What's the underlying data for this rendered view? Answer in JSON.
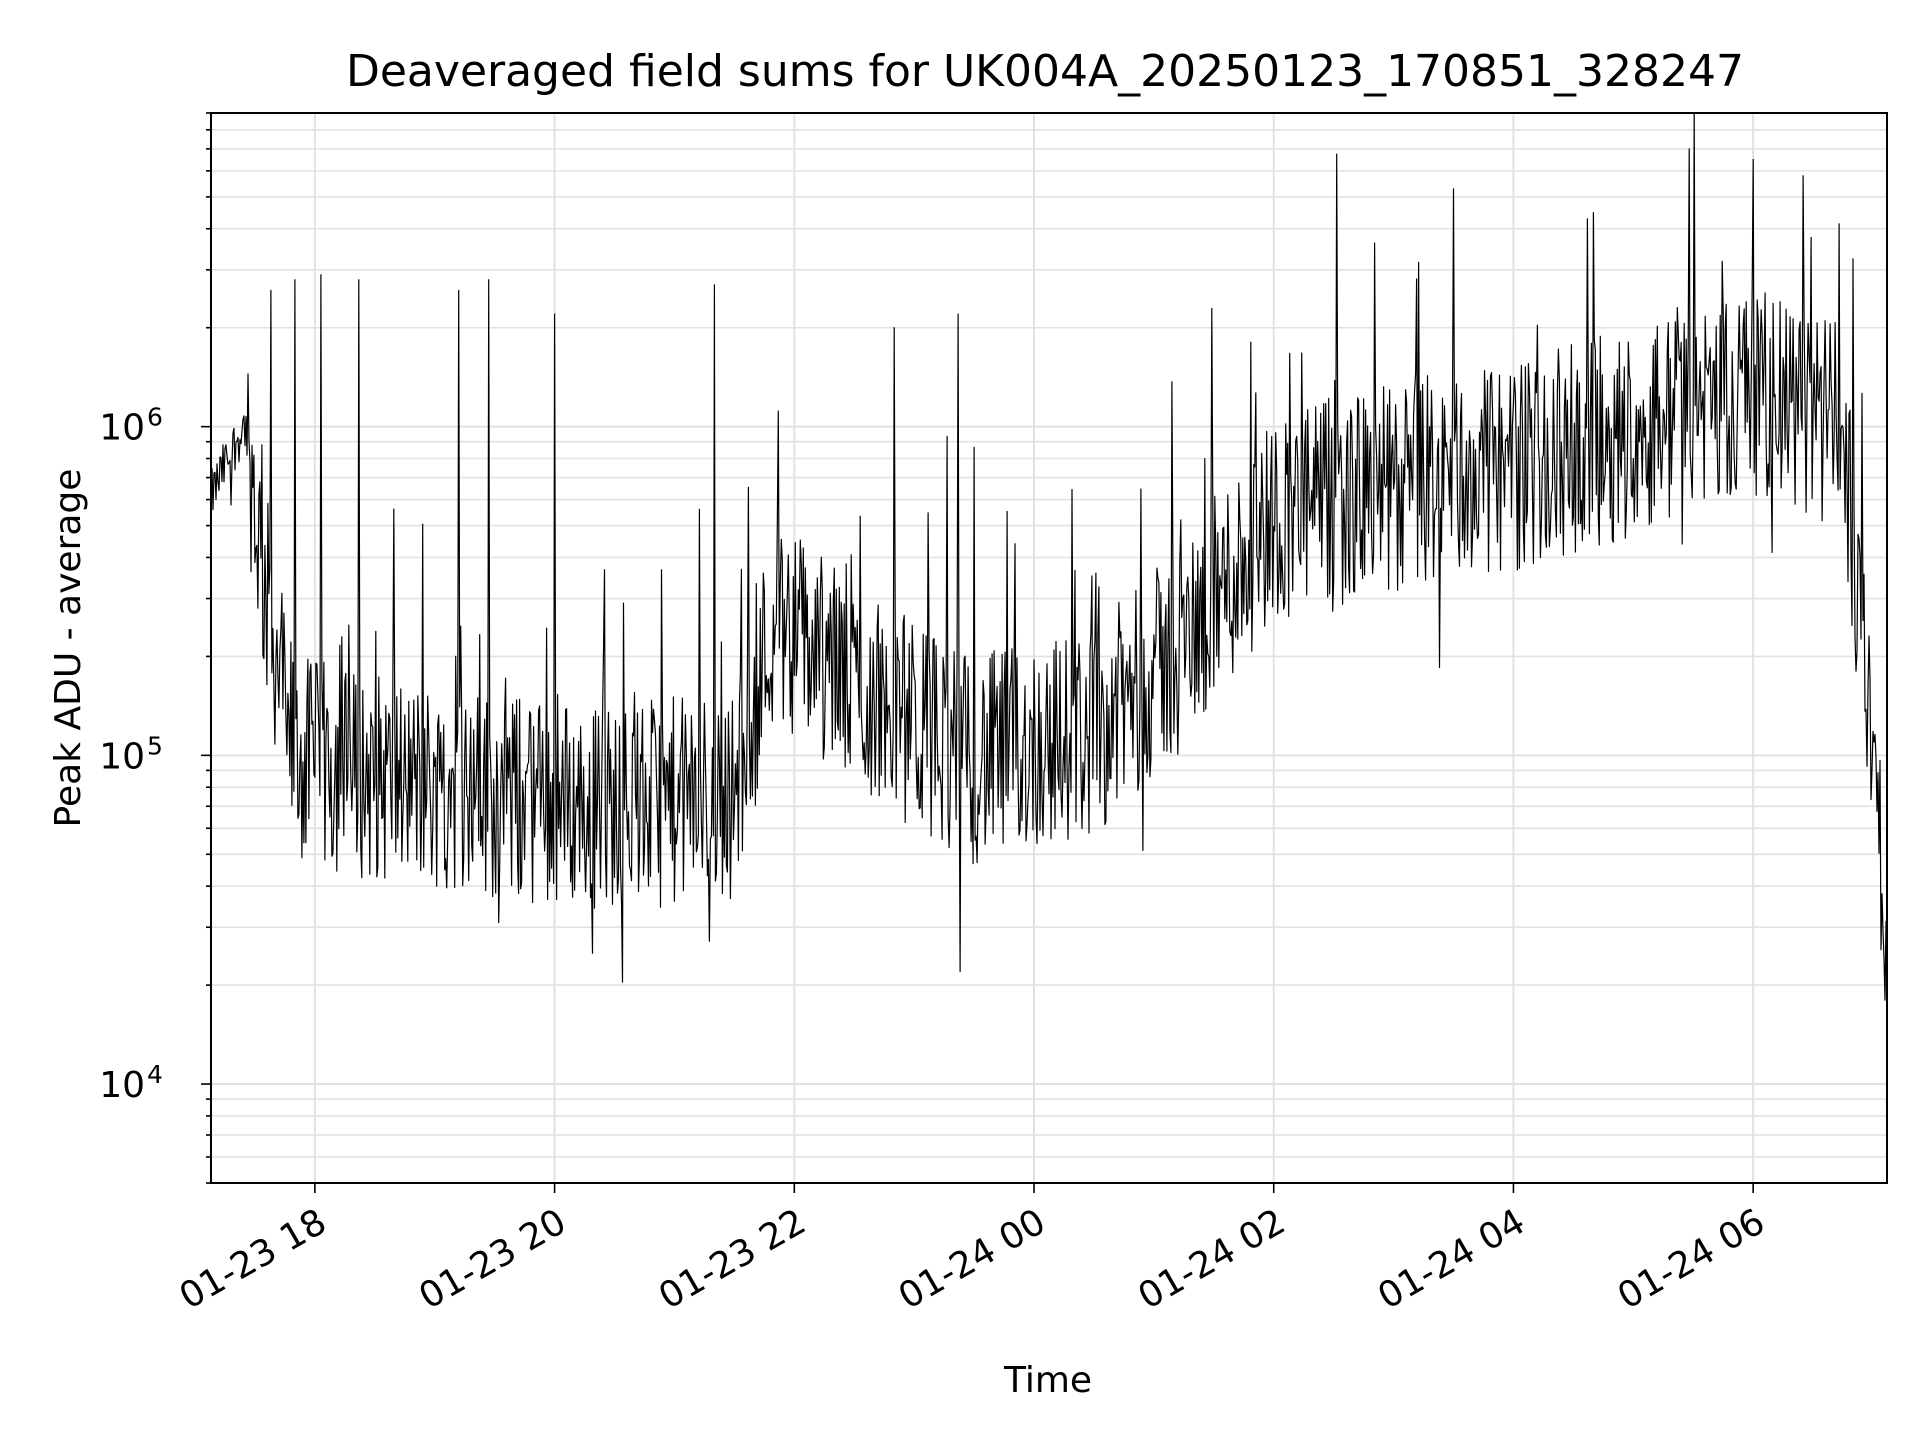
{
  "chart_data": {
    "type": "line",
    "title": "Deaveraged field sums for UK004A_20250123_170851_328247",
    "xlabel": "Time",
    "ylabel": "Peak ADU - average",
    "yscale": "log",
    "grid": true,
    "xlim": [
      "01-23 17:08",
      "01-24 07:07"
    ],
    "ylim": [
      5000,
      9000000
    ],
    "x_ticks": [
      "01-23 18",
      "01-23 20",
      "01-23 22",
      "01-24 00",
      "01-24 02",
      "01-24 04",
      "01-24 06"
    ],
    "x_tick_times": [
      "01-23 18:00",
      "01-23 20:00",
      "01-23 22:00",
      "01-24 00:00",
      "01-24 02:00",
      "01-24 04:00",
      "01-24 06:00"
    ],
    "y_ticks": [
      {
        "base": "10",
        "exp": "4",
        "value": 10000
      },
      {
        "base": "10",
        "exp": "5",
        "value": 100000
      },
      {
        "base": "10",
        "exp": "6",
        "value": 1000000
      }
    ],
    "series": [
      {
        "color": "#000000",
        "summary_points": [
          {
            "x": "01-23 17:08",
            "y": 600000
          },
          {
            "x": "01-23 17:15",
            "y": 750000
          },
          {
            "x": "01-23 17:25",
            "y": 1000000
          },
          {
            "x": "01-23 17:35",
            "y": 300000
          },
          {
            "x": "01-23 17:50",
            "y": 90000
          },
          {
            "x": "01-23 18:30",
            "y": 80000
          },
          {
            "x": "01-23 19:30",
            "y": 70000
          },
          {
            "x": "01-23 20:30",
            "y": 65000
          },
          {
            "x": "01-23 21:30",
            "y": 70000
          },
          {
            "x": "01-23 21:50",
            "y": 250000
          },
          {
            "x": "01-23 22:30",
            "y": 150000
          },
          {
            "x": "01-23 23:30",
            "y": 90000
          },
          {
            "x": "01-24 00:30",
            "y": 110000
          },
          {
            "x": "01-24 01:15",
            "y": 200000
          },
          {
            "x": "01-24 02:00",
            "y": 500000
          },
          {
            "x": "01-24 03:00",
            "y": 600000
          },
          {
            "x": "01-24 04:00",
            "y": 700000
          },
          {
            "x": "01-24 05:00",
            "y": 900000
          },
          {
            "x": "01-24 06:00",
            "y": 1200000
          },
          {
            "x": "01-24 06:45",
            "y": 900000
          },
          {
            "x": "01-24 07:00",
            "y": 100000
          },
          {
            "x": "01-24 07:07",
            "y": 20000
          }
        ],
        "spikes": [
          {
            "x": "01-23 17:38",
            "y": 2600000
          },
          {
            "x": "01-23 17:50",
            "y": 2800000
          },
          {
            "x": "01-23 18:03",
            "y": 2900000
          },
          {
            "x": "01-23 18:22",
            "y": 2800000
          },
          {
            "x": "01-23 19:12",
            "y": 2600000
          },
          {
            "x": "01-23 19:27",
            "y": 2800000
          },
          {
            "x": "01-23 20:00",
            "y": 2200000
          },
          {
            "x": "01-23 21:20",
            "y": 2700000
          },
          {
            "x": "01-23 22:50",
            "y": 2000000
          },
          {
            "x": "01-23 23:22",
            "y": 2200000
          },
          {
            "x": "01-24 05:28",
            "y": 7000000
          },
          {
            "x": "01-24 06:00",
            "y": 6500000
          },
          {
            "x": "01-24 06:25",
            "y": 5800000
          }
        ],
        "dips": [
          {
            "x": "01-23 19:32",
            "y": 31000
          },
          {
            "x": "01-23 23:23",
            "y": 22000
          },
          {
            "x": "01-24 07:06",
            "y": 18000
          }
        ]
      }
    ]
  }
}
